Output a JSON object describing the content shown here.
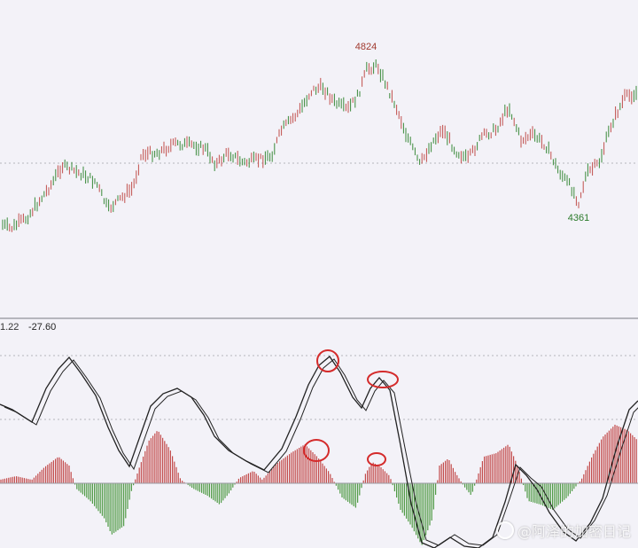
{
  "chart_data": [
    {
      "type": "line",
      "name": "price",
      "annotations": [
        {
          "text": "4824",
          "kind": "high",
          "color": "#a0392e"
        },
        {
          "text": "4361",
          "kind": "low",
          "color": "#2a7a2a"
        }
      ],
      "up_color": "#c0504d",
      "down_color": "#3a8a3a"
    },
    {
      "type": "bar",
      "name": "macd",
      "readouts": [
        "1.22",
        "-27.60"
      ],
      "pos_bar_color": "#c24a4a",
      "neg_bar_color": "#4f9a45",
      "line_colors": [
        "#222222",
        "#222222"
      ],
      "highlight_color": "#d42b2b",
      "highlights": 4
    }
  ],
  "watermark": {
    "text": "@阿泽的加密日记"
  }
}
